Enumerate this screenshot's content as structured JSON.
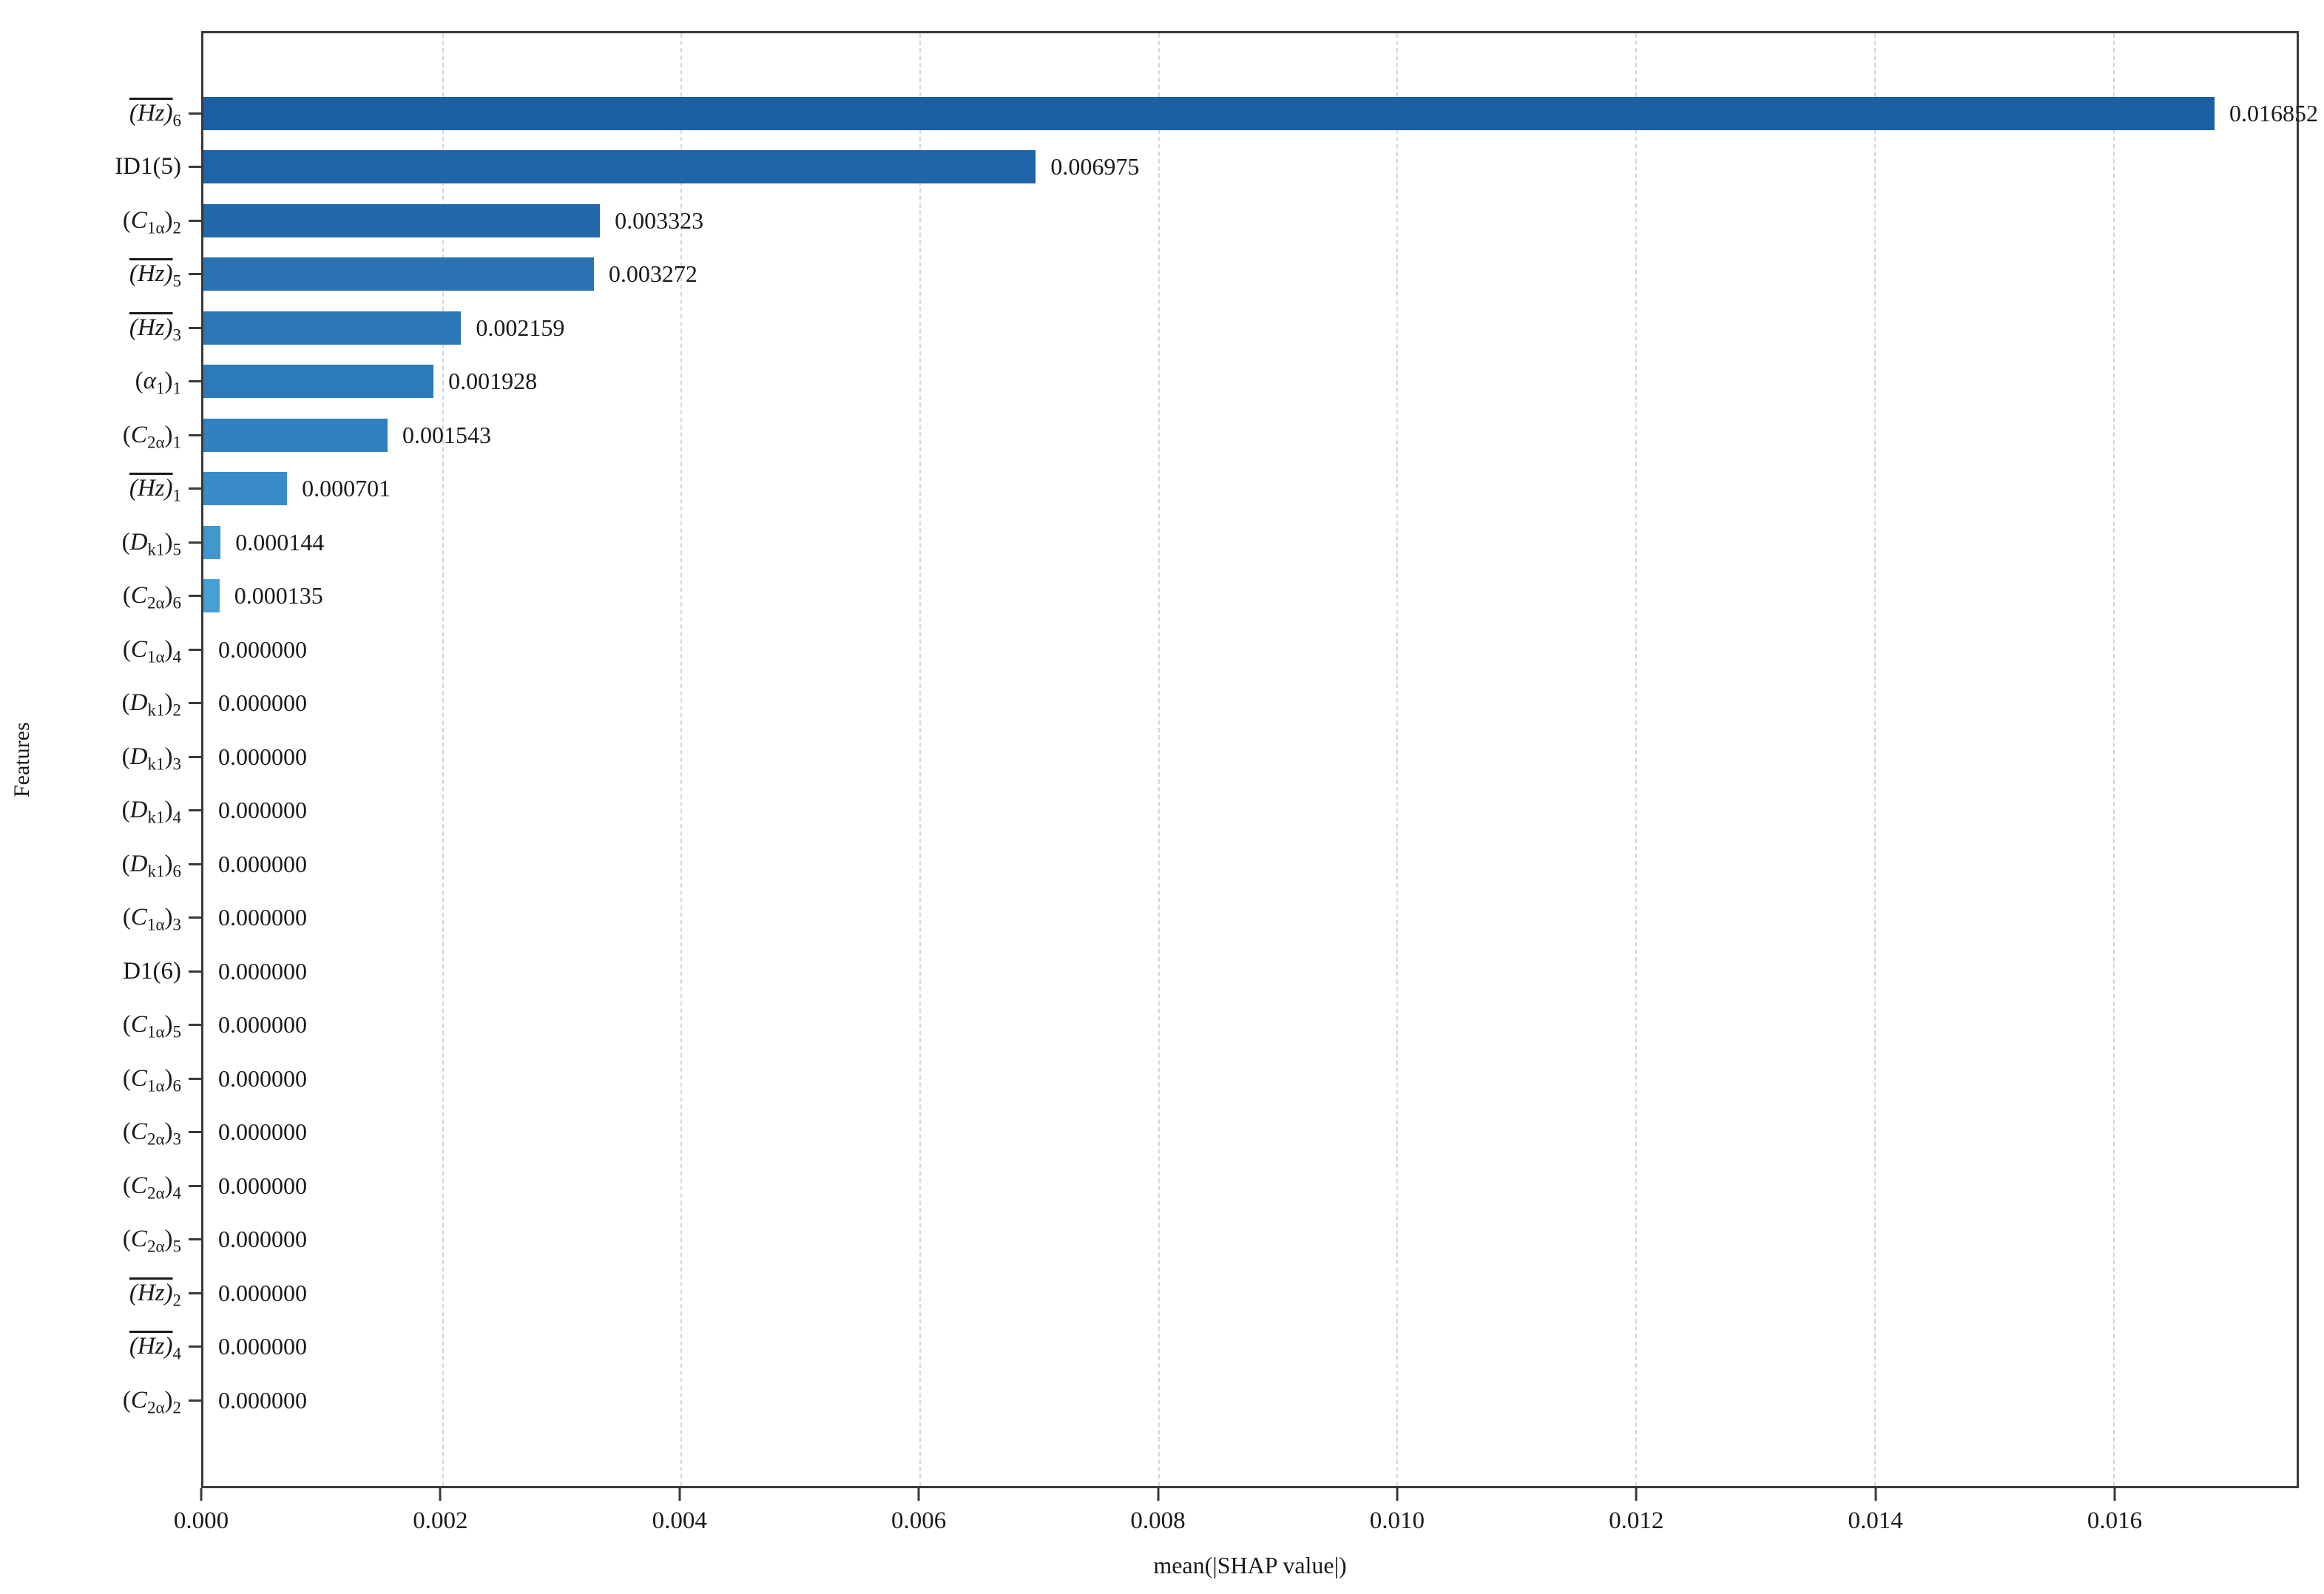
{
  "chart_data": {
    "type": "bar",
    "orientation": "horizontal",
    "title": "",
    "xlabel": "mean(|SHAP value|)",
    "ylabel": "Features",
    "xlim": [
      0,
      0.01754
    ],
    "xticks": [
      0.0,
      0.002,
      0.004,
      0.006,
      0.008,
      0.01,
      0.012,
      0.014,
      0.016
    ],
    "xtick_labels": [
      "0.000",
      "0.002",
      "0.004",
      "0.006",
      "0.008",
      "0.010",
      "0.012",
      "0.014",
      "0.016"
    ],
    "grid": "vertical-dashed",
    "legend": "none",
    "categories": [
      "(Hz)_6",
      "ID1(5)",
      "(C_1a)_2",
      "(Hz)_5",
      "(Hz)_3",
      "(a_1)_1",
      "(C_2a)_1",
      "(Hz)_1",
      "(D_k1)_5",
      "(C_2a)_6",
      "(C_1a)_4",
      "(D_k1)_2",
      "(D_k1)_3",
      "(D_k1)_4",
      "(D_k1)_6",
      "(C_1a)_3",
      "D1(6)",
      "(C_1a)_5",
      "(C_1a)_6",
      "(C_2a)_3",
      "(C_2a)_4",
      "(C_2a)_5",
      "(Hz)_2",
      "(Hz)_4",
      "(C_2a)_2"
    ],
    "label_tokens": [
      [
        {
          "t": "ovl",
          "v": "(Hz)"
        },
        {
          "t": "sub",
          "v": "6"
        }
      ],
      [
        {
          "t": "txt",
          "v": "ID1(5)"
        }
      ],
      [
        {
          "t": "txt",
          "v": "("
        },
        {
          "t": "it",
          "v": "C"
        },
        {
          "t": "sub",
          "v": "1α"
        },
        {
          "t": "txt",
          "v": ")"
        },
        {
          "t": "sub",
          "v": "2"
        }
      ],
      [
        {
          "t": "ovl",
          "v": "(Hz)"
        },
        {
          "t": "sub",
          "v": "5"
        }
      ],
      [
        {
          "t": "ovl",
          "v": "(Hz)"
        },
        {
          "t": "sub",
          "v": "3"
        }
      ],
      [
        {
          "t": "txt",
          "v": "("
        },
        {
          "t": "it",
          "v": "α"
        },
        {
          "t": "sub",
          "v": "1"
        },
        {
          "t": "txt",
          "v": ")"
        },
        {
          "t": "sub",
          "v": "1"
        }
      ],
      [
        {
          "t": "txt",
          "v": "("
        },
        {
          "t": "it",
          "v": "C"
        },
        {
          "t": "sub",
          "v": "2α"
        },
        {
          "t": "txt",
          "v": ")"
        },
        {
          "t": "sub",
          "v": "1"
        }
      ],
      [
        {
          "t": "ovl",
          "v": "(Hz)"
        },
        {
          "t": "sub",
          "v": "1"
        }
      ],
      [
        {
          "t": "txt",
          "v": "("
        },
        {
          "t": "it",
          "v": "D"
        },
        {
          "t": "sub",
          "v": "k1"
        },
        {
          "t": "txt",
          "v": ")"
        },
        {
          "t": "sub",
          "v": "5"
        }
      ],
      [
        {
          "t": "txt",
          "v": "("
        },
        {
          "t": "it",
          "v": "C"
        },
        {
          "t": "sub",
          "v": "2α"
        },
        {
          "t": "txt",
          "v": ")"
        },
        {
          "t": "sub",
          "v": "6"
        }
      ],
      [
        {
          "t": "txt",
          "v": "("
        },
        {
          "t": "it",
          "v": "C"
        },
        {
          "t": "sub",
          "v": "1α"
        },
        {
          "t": "txt",
          "v": ")"
        },
        {
          "t": "sub",
          "v": "4"
        }
      ],
      [
        {
          "t": "txt",
          "v": "("
        },
        {
          "t": "it",
          "v": "D"
        },
        {
          "t": "sub",
          "v": "k1"
        },
        {
          "t": "txt",
          "v": ")"
        },
        {
          "t": "sub",
          "v": "2"
        }
      ],
      [
        {
          "t": "txt",
          "v": "("
        },
        {
          "t": "it",
          "v": "D"
        },
        {
          "t": "sub",
          "v": "k1"
        },
        {
          "t": "txt",
          "v": ")"
        },
        {
          "t": "sub",
          "v": "3"
        }
      ],
      [
        {
          "t": "txt",
          "v": "("
        },
        {
          "t": "it",
          "v": "D"
        },
        {
          "t": "sub",
          "v": "k1"
        },
        {
          "t": "txt",
          "v": ")"
        },
        {
          "t": "sub",
          "v": "4"
        }
      ],
      [
        {
          "t": "txt",
          "v": "("
        },
        {
          "t": "it",
          "v": "D"
        },
        {
          "t": "sub",
          "v": "k1"
        },
        {
          "t": "txt",
          "v": ")"
        },
        {
          "t": "sub",
          "v": "6"
        }
      ],
      [
        {
          "t": "txt",
          "v": "("
        },
        {
          "t": "it",
          "v": "C"
        },
        {
          "t": "sub",
          "v": "1α"
        },
        {
          "t": "txt",
          "v": ")"
        },
        {
          "t": "sub",
          "v": "3"
        }
      ],
      [
        {
          "t": "txt",
          "v": "D1(6)"
        }
      ],
      [
        {
          "t": "txt",
          "v": "("
        },
        {
          "t": "it",
          "v": "C"
        },
        {
          "t": "sub",
          "v": "1α"
        },
        {
          "t": "txt",
          "v": ")"
        },
        {
          "t": "sub",
          "v": "5"
        }
      ],
      [
        {
          "t": "txt",
          "v": "("
        },
        {
          "t": "it",
          "v": "C"
        },
        {
          "t": "sub",
          "v": "1α"
        },
        {
          "t": "txt",
          "v": ")"
        },
        {
          "t": "sub",
          "v": "6"
        }
      ],
      [
        {
          "t": "txt",
          "v": "("
        },
        {
          "t": "it",
          "v": "C"
        },
        {
          "t": "sub",
          "v": "2α"
        },
        {
          "t": "txt",
          "v": ")"
        },
        {
          "t": "sub",
          "v": "3"
        }
      ],
      [
        {
          "t": "txt",
          "v": "("
        },
        {
          "t": "it",
          "v": "C"
        },
        {
          "t": "sub",
          "v": "2α"
        },
        {
          "t": "txt",
          "v": ")"
        },
        {
          "t": "sub",
          "v": "4"
        }
      ],
      [
        {
          "t": "txt",
          "v": "("
        },
        {
          "t": "it",
          "v": "C"
        },
        {
          "t": "sub",
          "v": "2α"
        },
        {
          "t": "txt",
          "v": ")"
        },
        {
          "t": "sub",
          "v": "5"
        }
      ],
      [
        {
          "t": "ovl",
          "v": "(Hz)"
        },
        {
          "t": "sub",
          "v": "2"
        }
      ],
      [
        {
          "t": "ovl",
          "v": "(Hz)"
        },
        {
          "t": "sub",
          "v": "4"
        }
      ],
      [
        {
          "t": "txt",
          "v": "("
        },
        {
          "t": "it",
          "v": "C"
        },
        {
          "t": "sub",
          "v": "2α"
        },
        {
          "t": "txt",
          "v": ")"
        },
        {
          "t": "sub",
          "v": "2"
        }
      ]
    ],
    "values": [
      0.016852,
      0.006975,
      0.003323,
      0.003272,
      0.002159,
      0.001928,
      0.001543,
      0.000701,
      0.000144,
      0.000135,
      0,
      0,
      0,
      0,
      0,
      0,
      0,
      0,
      0,
      0,
      0,
      0,
      0,
      0,
      0
    ],
    "value_labels": [
      "0.016852",
      "0.006975",
      "0.003323",
      "0.003272",
      "0.002159",
      "0.001928",
      "0.001543",
      "0.000701",
      "0.000144",
      "0.000135",
      "0.000000",
      "0.000000",
      "0.000000",
      "0.000000",
      "0.000000",
      "0.000000",
      "0.000000",
      "0.000000",
      "0.000000",
      "0.000000",
      "0.000000",
      "0.000000",
      "0.000000",
      "0.000000",
      "0.000000"
    ],
    "bar_colors": [
      "#1c5ea3",
      "#1f63a8",
      "#2268ab",
      "#2a72b3",
      "#2d77b8",
      "#2d7abb",
      "#3181c0",
      "#3a8cc9",
      "#4397ce",
      "#47a0d4"
    ],
    "bar_color_default": "#4aa5d8"
  },
  "colors": {
    "background": "#ffffff",
    "spine": "#3a3a3a",
    "gridline": "#d6d6d6",
    "text": "#1a1a1a"
  }
}
